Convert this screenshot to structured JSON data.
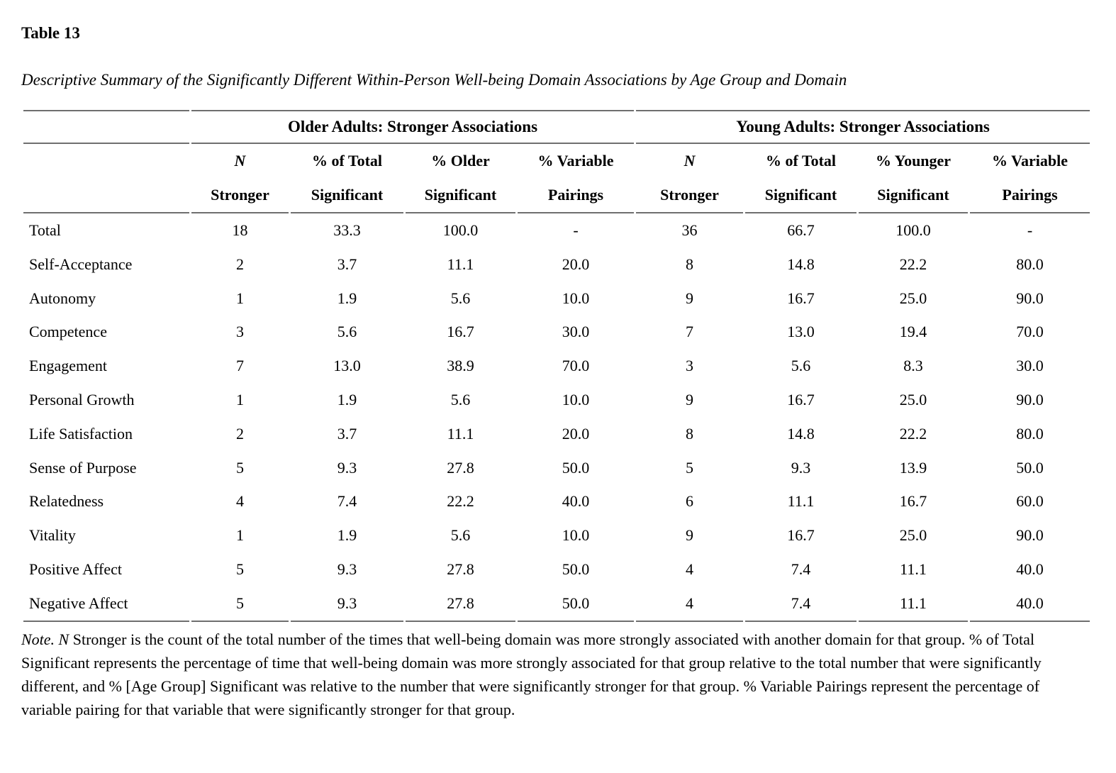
{
  "page": {
    "table_label": "Table 13",
    "caption": "Descriptive Summary of the Significantly Different Within-Person Well-being Domain Associations by Age Group and Domain"
  },
  "table": {
    "group_headers": [
      {
        "label": "Older Adults: Stronger Associations"
      },
      {
        "label": "Young Adults: Stronger Associations"
      }
    ],
    "column_headers": [
      {
        "line1": "N",
        "line2": "Stronger",
        "italic_line1": true
      },
      {
        "line1": "% of Total",
        "line2": "Significant",
        "italic_line1": false
      },
      {
        "line1": "% Older",
        "line2": "Significant",
        "italic_line1": false
      },
      {
        "line1": "% Variable",
        "line2": "Pairings",
        "italic_line1": false
      },
      {
        "line1": "N",
        "line2": "Stronger",
        "italic_line1": true
      },
      {
        "line1": "% of Total",
        "line2": "Significant",
        "italic_line1": false
      },
      {
        "line1": "% Younger",
        "line2": "Significant",
        "italic_line1": false
      },
      {
        "line1": "% Variable",
        "line2": "Pairings",
        "italic_line1": false
      }
    ],
    "rows": [
      {
        "label": "Total",
        "values": [
          "18",
          "33.3",
          "100.0",
          "-",
          "36",
          "66.7",
          "100.0",
          "-"
        ]
      },
      {
        "label": "Self-Acceptance",
        "values": [
          "2",
          "3.7",
          "11.1",
          "20.0",
          "8",
          "14.8",
          "22.2",
          "80.0"
        ]
      },
      {
        "label": "Autonomy",
        "values": [
          "1",
          "1.9",
          "5.6",
          "10.0",
          "9",
          "16.7",
          "25.0",
          "90.0"
        ]
      },
      {
        "label": "Competence",
        "values": [
          "3",
          "5.6",
          "16.7",
          "30.0",
          "7",
          "13.0",
          "19.4",
          "70.0"
        ]
      },
      {
        "label": "Engagement",
        "values": [
          "7",
          "13.0",
          "38.9",
          "70.0",
          "3",
          "5.6",
          "8.3",
          "30.0"
        ]
      },
      {
        "label": "Personal Growth",
        "values": [
          "1",
          "1.9",
          "5.6",
          "10.0",
          "9",
          "16.7",
          "25.0",
          "90.0"
        ]
      },
      {
        "label": "Life Satisfaction",
        "values": [
          "2",
          "3.7",
          "11.1",
          "20.0",
          "8",
          "14.8",
          "22.2",
          "80.0"
        ]
      },
      {
        "label": "Sense of Purpose",
        "values": [
          "5",
          "9.3",
          "27.8",
          "50.0",
          "5",
          "9.3",
          "13.9",
          "50.0"
        ]
      },
      {
        "label": "Relatedness",
        "values": [
          "4",
          "7.4",
          "22.2",
          "40.0",
          "6",
          "11.1",
          "16.7",
          "60.0"
        ]
      },
      {
        "label": "Vitality",
        "values": [
          "1",
          "1.9",
          "5.6",
          "10.0",
          "9",
          "16.7",
          "25.0",
          "90.0"
        ]
      },
      {
        "label": "Positive Affect",
        "values": [
          "5",
          "9.3",
          "27.8",
          "50.0",
          "4",
          "7.4",
          "11.1",
          "40.0"
        ]
      },
      {
        "label": "Negative Affect",
        "values": [
          "5",
          "9.3",
          "27.8",
          "50.0",
          "4",
          "7.4",
          "11.1",
          "40.0"
        ]
      }
    ]
  },
  "note": {
    "lead_italic": "Note. N",
    "body": " Stronger is the count of the total number of the times that well-being domain was more strongly associated with another domain for that group. % of Total Significant represents the percentage of time that well-being domain was more strongly associated for that group relative to the total number that were significantly different, and % [Age Group] Significant was relative to the number that were significantly stronger for that group. % Variable Pairings represent the percentage of variable pairing for that variable that were significantly stronger for that group."
  },
  "colors": {
    "rule": "#6f6f6f",
    "text": "#000000",
    "background": "#ffffff"
  }
}
